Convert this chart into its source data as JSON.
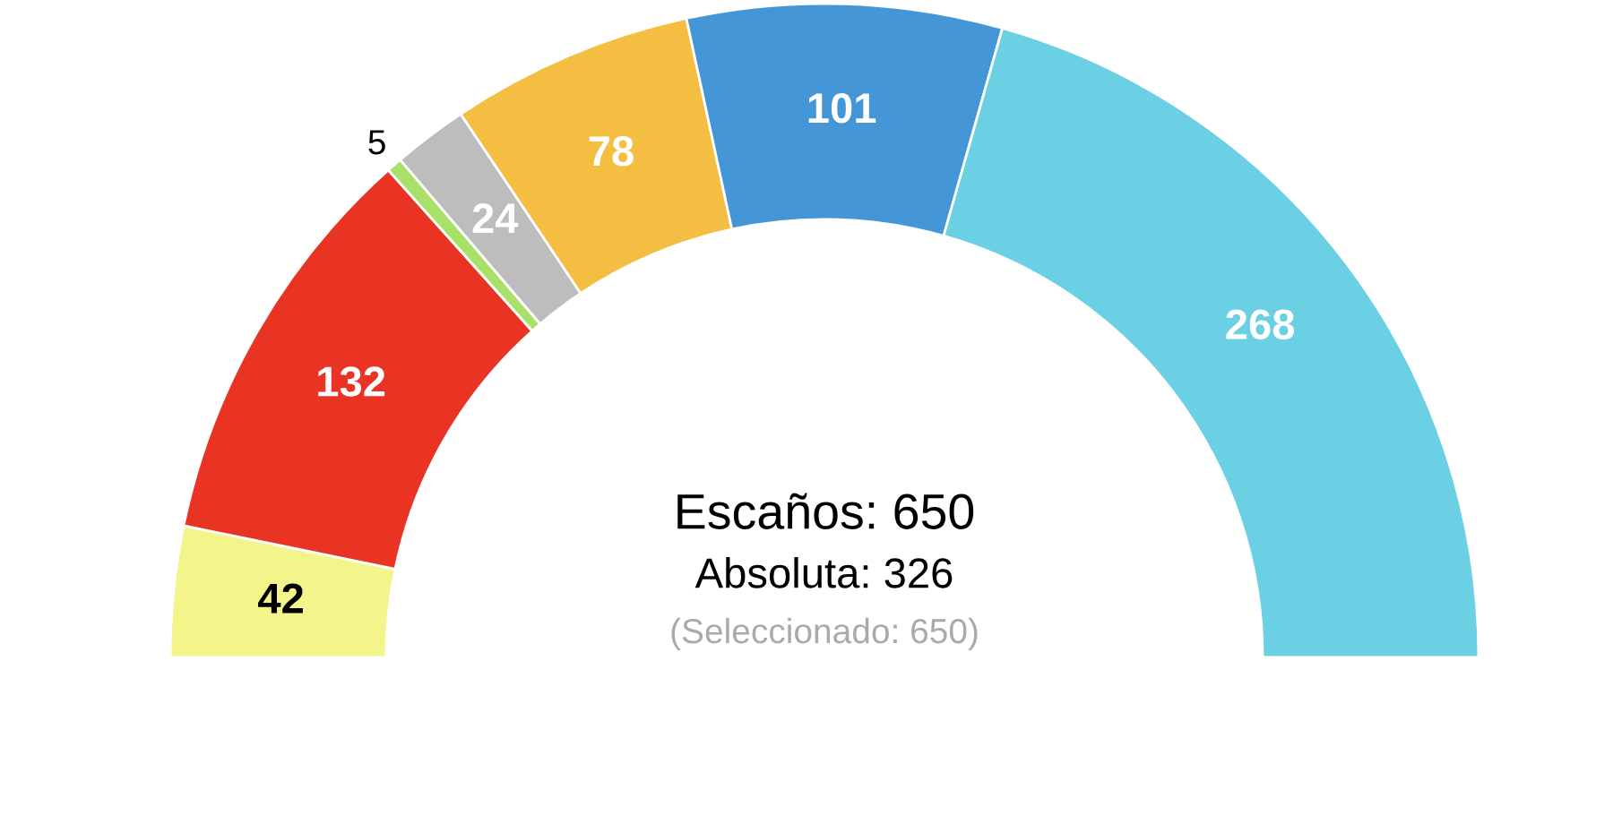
{
  "chart_data": {
    "type": "donut",
    "categories": [
      null,
      null,
      null,
      null,
      null,
      null,
      null
    ],
    "values": [
      42,
      132,
      5,
      24,
      78,
      101,
      268
    ],
    "colors": [
      "#f3f58a",
      "#e93323",
      "#a8e06a",
      "#bdbdbd",
      "#f4be43",
      "#4596d6",
      "#6bd0e3"
    ],
    "data_labels": true,
    "annotations": [
      "Escaños: 650",
      "Absoluta: 326",
      "(Seleccionado: 650)"
    ]
  }
}
